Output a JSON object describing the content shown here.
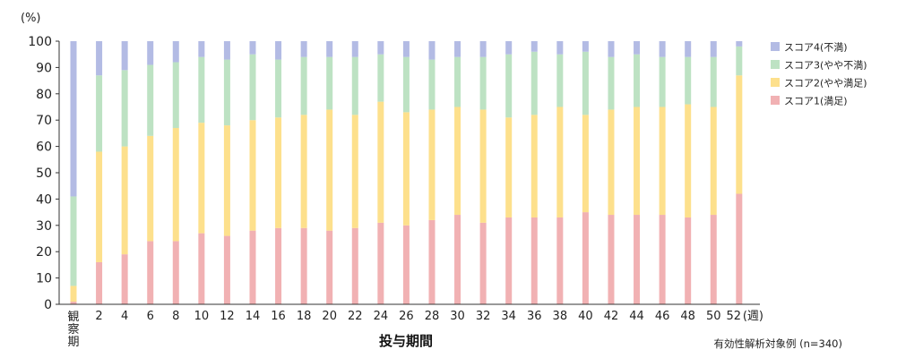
{
  "chart_data": {
    "type": "bar",
    "stacked": true,
    "y_unit": "(%)",
    "xlabel": "投与期間",
    "x_unit_suffix": "(週)",
    "ylim": [
      0,
      100
    ],
    "yticks": [
      0,
      10,
      20,
      30,
      40,
      50,
      60,
      70,
      80,
      90,
      100
    ],
    "categories": [
      "観察期",
      "2",
      "4",
      "6",
      "8",
      "10",
      "12",
      "14",
      "16",
      "18",
      "20",
      "22",
      "24",
      "26",
      "28",
      "30",
      "32",
      "34",
      "36",
      "38",
      "40",
      "42",
      "44",
      "46",
      "48",
      "50",
      "52"
    ],
    "series": [
      {
        "name": "スコア1(満足)",
        "color": "#f1b1b3",
        "values": [
          1,
          16,
          19,
          24,
          24,
          27,
          26,
          28,
          29,
          29,
          28,
          29,
          31,
          30,
          32,
          34,
          31,
          33,
          33,
          33,
          35,
          34,
          34,
          34,
          33,
          34,
          42
        ]
      },
      {
        "name": "スコア2(やや満足)",
        "color": "#fde08c",
        "values": [
          6,
          42,
          41,
          40,
          43,
          42,
          42,
          42,
          42,
          43,
          46,
          43,
          46,
          43,
          42,
          41,
          43,
          38,
          39,
          42,
          37,
          40,
          41,
          41,
          43,
          41,
          45
        ]
      },
      {
        "name": "スコア3(やや不満)",
        "color": "#bde2c3",
        "values": [
          34,
          29,
          29,
          27,
          25,
          25,
          25,
          25,
          22,
          22,
          20,
          22,
          18,
          21,
          19,
          19,
          20,
          24,
          24,
          20,
          24,
          20,
          20,
          19,
          18,
          19,
          11
        ]
      },
      {
        "name": "スコア4(不満)",
        "color": "#b3bbe4",
        "values": [
          59,
          13,
          11,
          9,
          8,
          6,
          7,
          5,
          7,
          6,
          6,
          6,
          5,
          6,
          7,
          6,
          6,
          5,
          4,
          5,
          4,
          6,
          5,
          6,
          6,
          6,
          2
        ]
      }
    ],
    "legend_position": "right",
    "grid": false,
    "legend_order": [
      "スコア4(不満)",
      "スコア3(やや不満)",
      "スコア2(やや満足)",
      "スコア1(満足)"
    ]
  },
  "note": "有効性解析対象例 (n=340)"
}
